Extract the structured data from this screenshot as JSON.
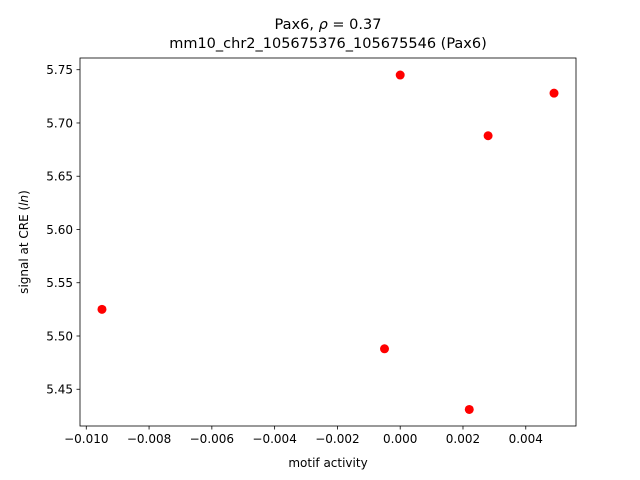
{
  "chart_data": {
    "type": "scatter",
    "title_line1_prefix": "Pax6, ",
    "title_line1_rho": "ρ",
    "title_line1_suffix": " = 0.37",
    "title_line2": "mm10_chr2_105675376_105675546 (Pax6)",
    "xlabel": "motif activity",
    "ylabel_prefix": "signal at CRE (",
    "ylabel_italic": "ln",
    "ylabel_suffix": ")",
    "xlim": [
      -0.0102,
      0.0056
    ],
    "ylim": [
      5.4155,
      5.761
    ],
    "x_ticks": [
      -0.01,
      -0.008,
      -0.006,
      -0.004,
      -0.002,
      0.0,
      0.002,
      0.004
    ],
    "x_tick_labels": [
      "−0.010",
      "−0.008",
      "−0.006",
      "−0.004",
      "−0.002",
      "0.000",
      "0.002",
      "0.004"
    ],
    "y_ticks": [
      5.45,
      5.5,
      5.55,
      5.6,
      5.65,
      5.7,
      5.75
    ],
    "y_tick_labels": [
      "5.45",
      "5.50",
      "5.55",
      "5.60",
      "5.65",
      "5.70",
      "5.75"
    ],
    "point_color": "#ff0000",
    "points": [
      {
        "x": 0.0,
        "y": 5.745
      },
      {
        "x": 0.0049,
        "y": 5.728
      },
      {
        "x": 0.0028,
        "y": 5.688
      },
      {
        "x": -0.0095,
        "y": 5.525
      },
      {
        "x": -0.0005,
        "y": 5.488
      },
      {
        "x": 0.0022,
        "y": 5.431
      }
    ]
  }
}
